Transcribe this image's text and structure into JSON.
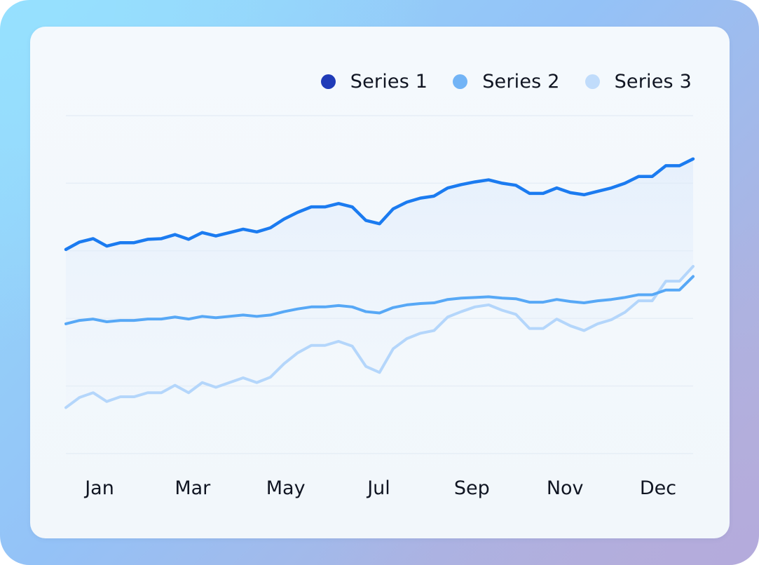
{
  "chart_data": {
    "type": "line",
    "title": "",
    "xlabel": "",
    "ylabel": "",
    "x_tick_labels": [
      "Jan",
      "Mar",
      "May",
      "Jul",
      "Sep",
      "Nov",
      "Dec"
    ],
    "ylim": [
      0,
      500
    ],
    "grid": true,
    "legend_position": "top-right",
    "series": [
      {
        "name": "Series 1",
        "color": "#1b7bf0",
        "legend_color": "#1f3bb8",
        "values": [
          302,
          313,
          318,
          307,
          312,
          312,
          317,
          318,
          324,
          317,
          327,
          322,
          327,
          332,
          328,
          334,
          347,
          357,
          365,
          365,
          370,
          365,
          345,
          340,
          362,
          372,
          378,
          381,
          393,
          398,
          402,
          405,
          400,
          397,
          385,
          385,
          393,
          386,
          383,
          388,
          393,
          400,
          410,
          410,
          426,
          426,
          436
        ]
      },
      {
        "name": "Series 2",
        "color": "#57a8f6",
        "legend_color": "#72b4f6",
        "values": [
          192,
          197,
          199,
          195,
          197,
          197,
          199,
          199,
          202,
          199,
          203,
          201,
          203,
          205,
          203,
          205,
          210,
          214,
          217,
          217,
          219,
          217,
          210,
          208,
          216,
          220,
          222,
          223,
          228,
          230,
          231,
          232,
          230,
          229,
          224,
          224,
          228,
          225,
          223,
          226,
          228,
          231,
          235,
          235,
          242,
          242,
          262
        ]
      },
      {
        "name": "Series 3",
        "color": "#b4d6fb",
        "legend_color": "#c0dcfb",
        "values": [
          68,
          83,
          90,
          77,
          84,
          84,
          90,
          90,
          101,
          90,
          105,
          98,
          105,
          112,
          105,
          113,
          133,
          149,
          160,
          160,
          166,
          159,
          129,
          120,
          155,
          170,
          178,
          182,
          202,
          210,
          217,
          220,
          212,
          206,
          185,
          185,
          199,
          189,
          182,
          192,
          198,
          209,
          226,
          226,
          255,
          255,
          277
        ]
      }
    ]
  }
}
